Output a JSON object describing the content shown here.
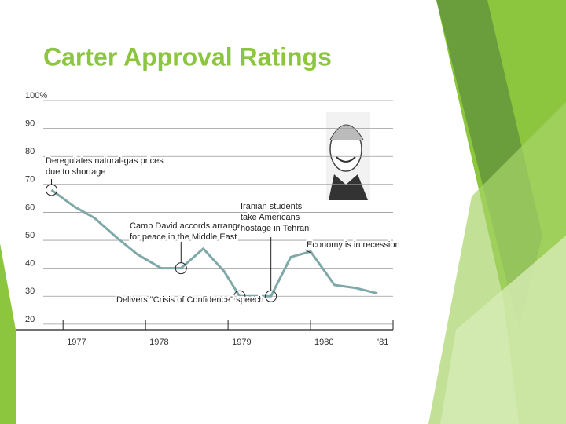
{
  "chart_data": {
    "type": "line",
    "title": "Carter Approval Ratings",
    "x": [
      1976.86,
      1977.14,
      1977.38,
      1977.65,
      1977.9,
      1978.19,
      1978.43,
      1978.7,
      1978.95,
      1979.14,
      1979.52,
      1979.76,
      1980.0,
      1980.29,
      1980.54,
      1980.81
    ],
    "series": [
      {
        "color": "#7fa9a9",
        "values": [
          68,
          62,
          58,
          51,
          45,
          40,
          40,
          47,
          39,
          30,
          30,
          44,
          46,
          34,
          33,
          31
        ]
      }
    ],
    "xlim": [
      1976.76,
      1981.0
    ],
    "xticks": [
      1977,
      1978,
      1979,
      1980,
      {
        "value": 1981,
        "label": "'81"
      }
    ],
    "ylim": [
      18,
      100
    ],
    "yticks": [
      20,
      30,
      40,
      50,
      60,
      70,
      80,
      90,
      {
        "value": 100,
        "label": "100%"
      }
    ],
    "grid": true,
    "annotations": [
      {
        "lines": [
          "Deregulates natural-gas prices",
          "due to shortage"
        ]
      },
      {
        "lines": [
          "Camp David accords arrange",
          "for peace in the Middle East"
        ]
      },
      {
        "lines": [
          "Iranian students",
          "take Americans",
          "hostage in Tehran"
        ]
      },
      {
        "lines": [
          "Economy is in recession"
        ]
      },
      {
        "lines": [
          "Delivers \"Crisis of Confidence\" speech"
        ]
      }
    ]
  }
}
